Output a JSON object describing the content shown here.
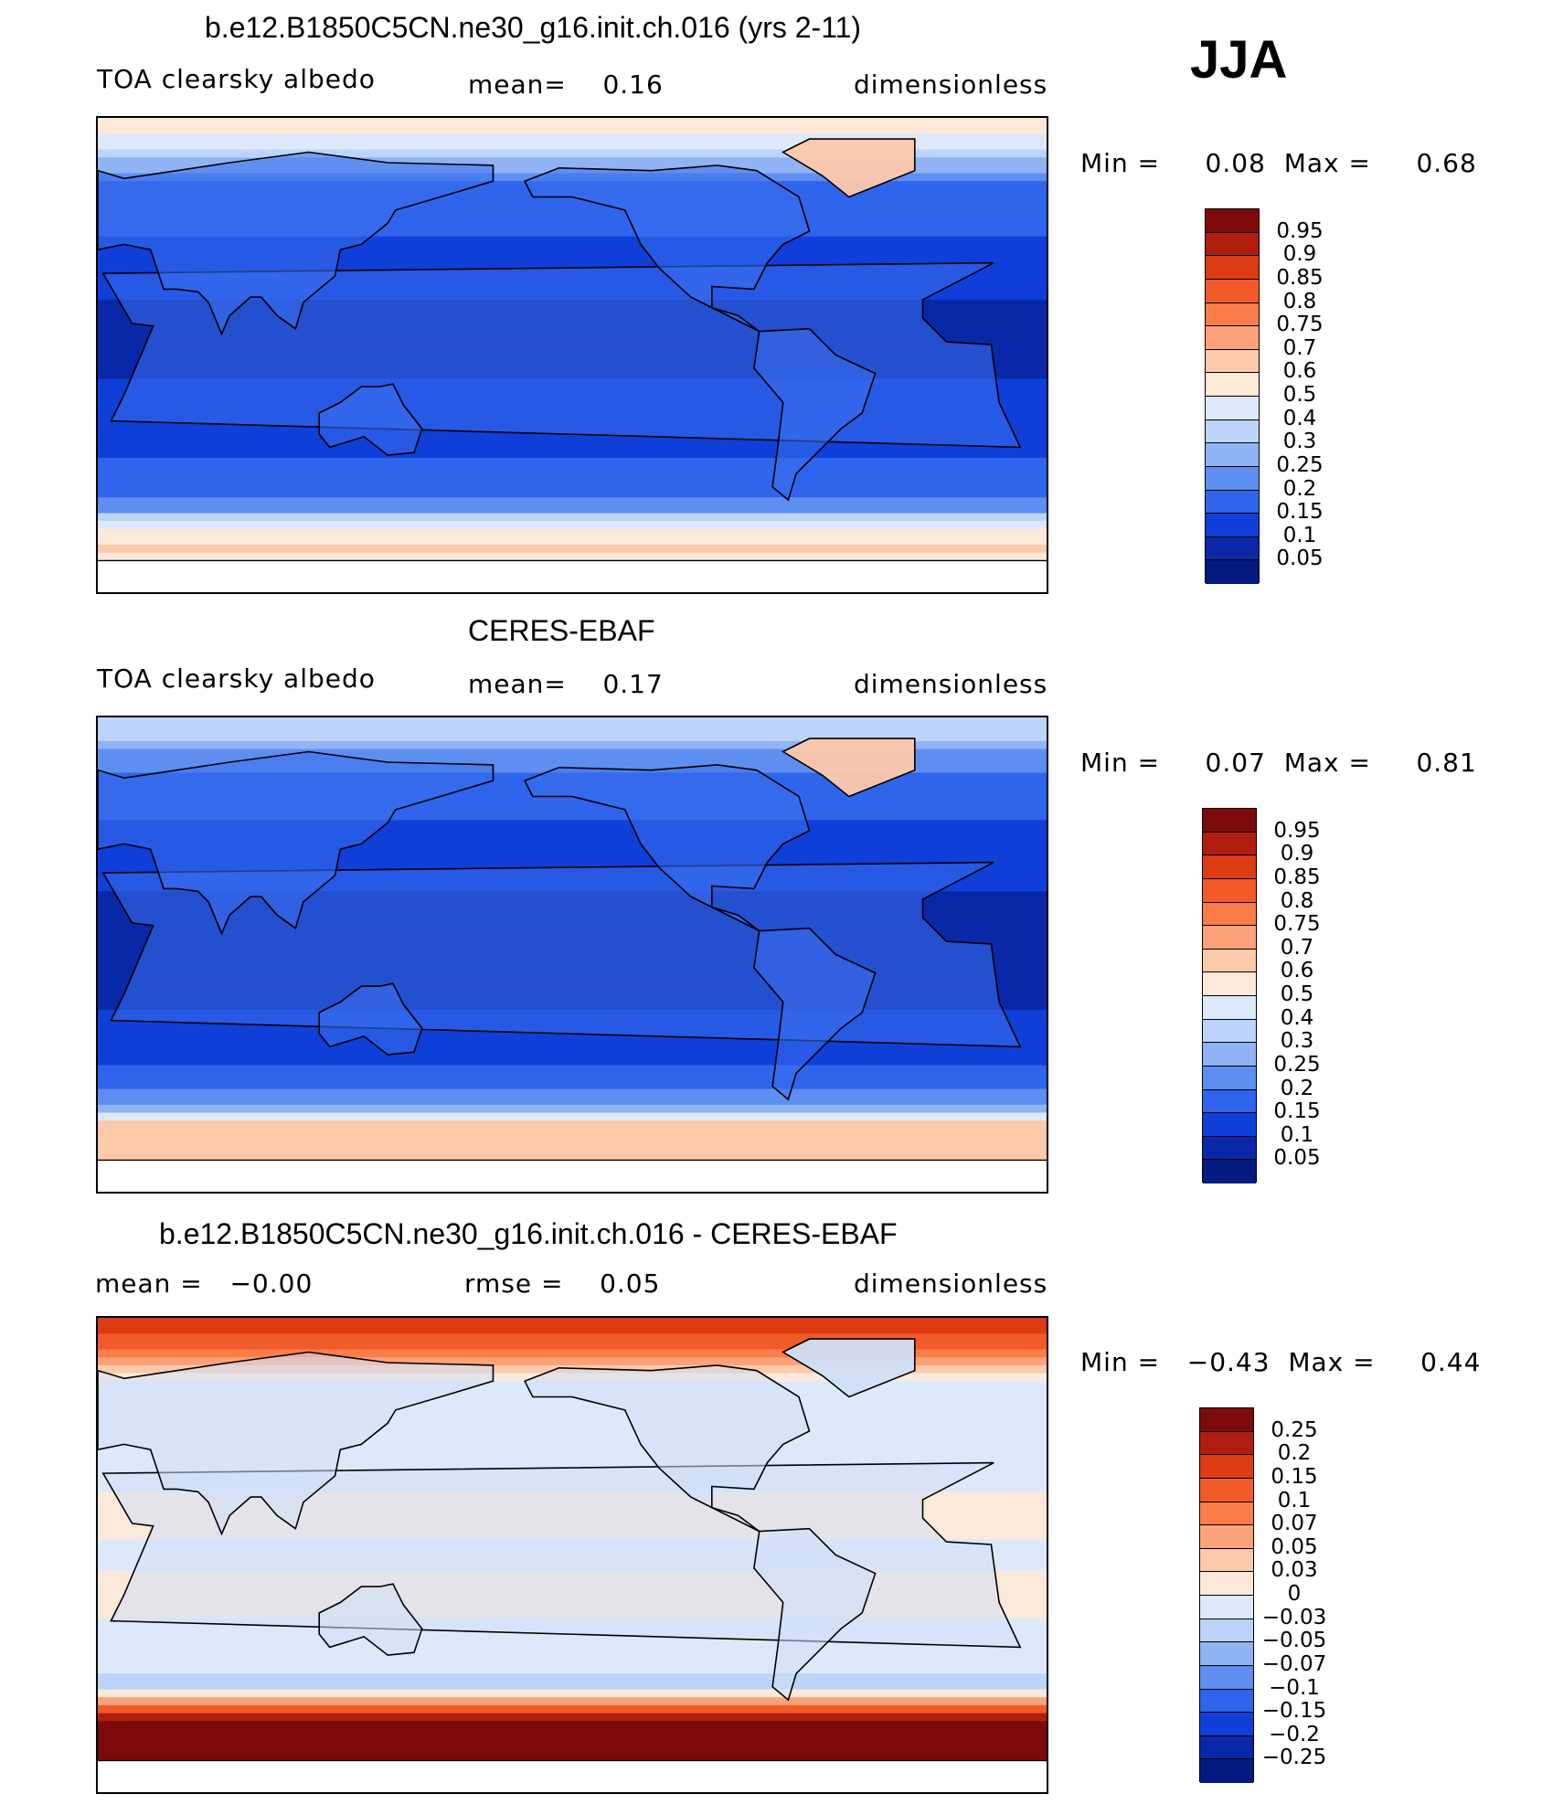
{
  "season": "JJA",
  "panels": [
    {
      "title": "b.e12.B1850C5CN.ne30_g16.init.ch.016 (yrs 2-11)",
      "variable": "TOA clearsky albedo",
      "stat1": "mean=    0.16",
      "stat2": "",
      "units": "dimensionless",
      "minmax": "Min =     0.08  Max =     0.68"
    },
    {
      "title": "CERES-EBAF",
      "variable": "TOA clearsky albedo",
      "stat1": "mean=    0.17",
      "stat2": "",
      "units": "dimensionless",
      "minmax": "Min =     0.07  Max =     0.81"
    },
    {
      "title": "b.e12.B1850C5CN.ne30_g16.init.ch.016 - CERES-EBAF",
      "variable": "",
      "stat1": "mean =   −0.00",
      "stat2": "rmse =    0.05",
      "units": "dimensionless",
      "minmax": "Min =   −0.43  Max =     0.44"
    }
  ],
  "chart_data": [
    {
      "type": "heatmap",
      "title": "b.e12.B1850C5CN.ne30_g16.init.ch.016 (yrs 2-11)",
      "variable": "TOA clearsky albedo",
      "units": "dimensionless",
      "mean": 0.16,
      "min": 0.08,
      "max": 0.68,
      "colorbar": {
        "levels": [
          "0.95",
          "0.9",
          "0.85",
          "0.8",
          "0.75",
          "0.7",
          "0.6",
          "0.5",
          "0.4",
          "0.3",
          "0.25",
          "0.2",
          "0.15",
          "0.1",
          "0.05"
        ],
        "colors": [
          "#7d0a0a",
          "#b01e10",
          "#dd3b12",
          "#f25a2a",
          "#fb7d48",
          "#fca27a",
          "#fdc9ab",
          "#fde9da",
          "#dde9fb",
          "#bcd4f9",
          "#8fb3f4",
          "#5e8ef0",
          "#2f64ec",
          "#0f3fd8",
          "#0828a8",
          "#051a80"
        ]
      },
      "latitude_bands": [
        {
          "lat": 85,
          "value": 0.55
        },
        {
          "lat": 75,
          "value": 0.3
        },
        {
          "lat": 65,
          "value": 0.2
        },
        {
          "lat": 50,
          "value": 0.16
        },
        {
          "lat": 35,
          "value": 0.13
        },
        {
          "lat": 20,
          "value": 0.1
        },
        {
          "lat": 0,
          "value": 0.09
        },
        {
          "lat": -20,
          "value": 0.11
        },
        {
          "lat": -35,
          "value": 0.14
        },
        {
          "lat": -50,
          "value": 0.17
        },
        {
          "lat": -60,
          "value": 0.25
        },
        {
          "lat": -66,
          "value": 0.5
        },
        {
          "lat": -72,
          "value": 0.62
        },
        {
          "lat": -85,
          "value": 0.55
        }
      ]
    },
    {
      "type": "heatmap",
      "title": "CERES-EBAF",
      "variable": "TOA clearsky albedo",
      "units": "dimensionless",
      "mean": 0.17,
      "min": 0.07,
      "max": 0.81,
      "colorbar": {
        "levels": [
          "0.95",
          "0.9",
          "0.85",
          "0.8",
          "0.75",
          "0.7",
          "0.6",
          "0.5",
          "0.4",
          "0.3",
          "0.25",
          "0.2",
          "0.15",
          "0.1",
          "0.05"
        ],
        "colors": [
          "#7d0a0a",
          "#b01e10",
          "#dd3b12",
          "#f25a2a",
          "#fb7d48",
          "#fca27a",
          "#fdc9ab",
          "#fde9da",
          "#dde9fb",
          "#bcd4f9",
          "#8fb3f4",
          "#5e8ef0",
          "#2f64ec",
          "#0f3fd8",
          "#0828a8",
          "#051a80"
        ]
      },
      "latitude_bands": [
        {
          "lat": 85,
          "value": 0.35
        },
        {
          "lat": 75,
          "value": 0.22
        },
        {
          "lat": 65,
          "value": 0.18
        },
        {
          "lat": 50,
          "value": 0.15
        },
        {
          "lat": 35,
          "value": 0.12
        },
        {
          "lat": 20,
          "value": 0.09
        },
        {
          "lat": 0,
          "value": 0.08
        },
        {
          "lat": -20,
          "value": 0.1
        },
        {
          "lat": -35,
          "value": 0.13
        },
        {
          "lat": -50,
          "value": 0.17
        },
        {
          "lat": -60,
          "value": 0.3
        },
        {
          "lat": -64,
          "value": 0.6
        }
      ]
    },
    {
      "type": "heatmap",
      "title": "b.e12.B1850C5CN.ne30_g16.init.ch.016 - CERES-EBAF",
      "units": "dimensionless",
      "mean": -0.0,
      "rmse": 0.05,
      "min": -0.43,
      "max": 0.44,
      "colorbar": {
        "levels": [
          "0.25",
          "0.2",
          "0.15",
          "0.1",
          "0.07",
          "0.05",
          "0.03",
          "0",
          "−0.03",
          "−0.05",
          "−0.07",
          "−0.1",
          "−0.15",
          "−0.2",
          "−0.25"
        ],
        "colors": [
          "#7d0a0a",
          "#b01e10",
          "#dd3b12",
          "#f25a2a",
          "#fb7d48",
          "#fca27a",
          "#fdc9ab",
          "#fde9da",
          "#dde9fb",
          "#bcd4f9",
          "#8fb3f4",
          "#5e8ef0",
          "#2f64ec",
          "#0f3fd8",
          "#0828a8",
          "#051a80"
        ]
      },
      "latitude_bands": [
        {
          "lat": 85,
          "value": 0.15
        },
        {
          "lat": 75,
          "value": 0.08
        },
        {
          "lat": 65,
          "value": -0.02
        },
        {
          "lat": 50,
          "value": -0.02
        },
        {
          "lat": 30,
          "value": -0.01
        },
        {
          "lat": 15,
          "value": 0.01
        },
        {
          "lat": 0,
          "value": -0.01
        },
        {
          "lat": -15,
          "value": 0.01
        },
        {
          "lat": -35,
          "value": -0.01
        },
        {
          "lat": -50,
          "value": -0.04
        },
        {
          "lat": -58,
          "value": 0.1
        },
        {
          "lat": -62,
          "value": 0.25
        }
      ]
    }
  ]
}
